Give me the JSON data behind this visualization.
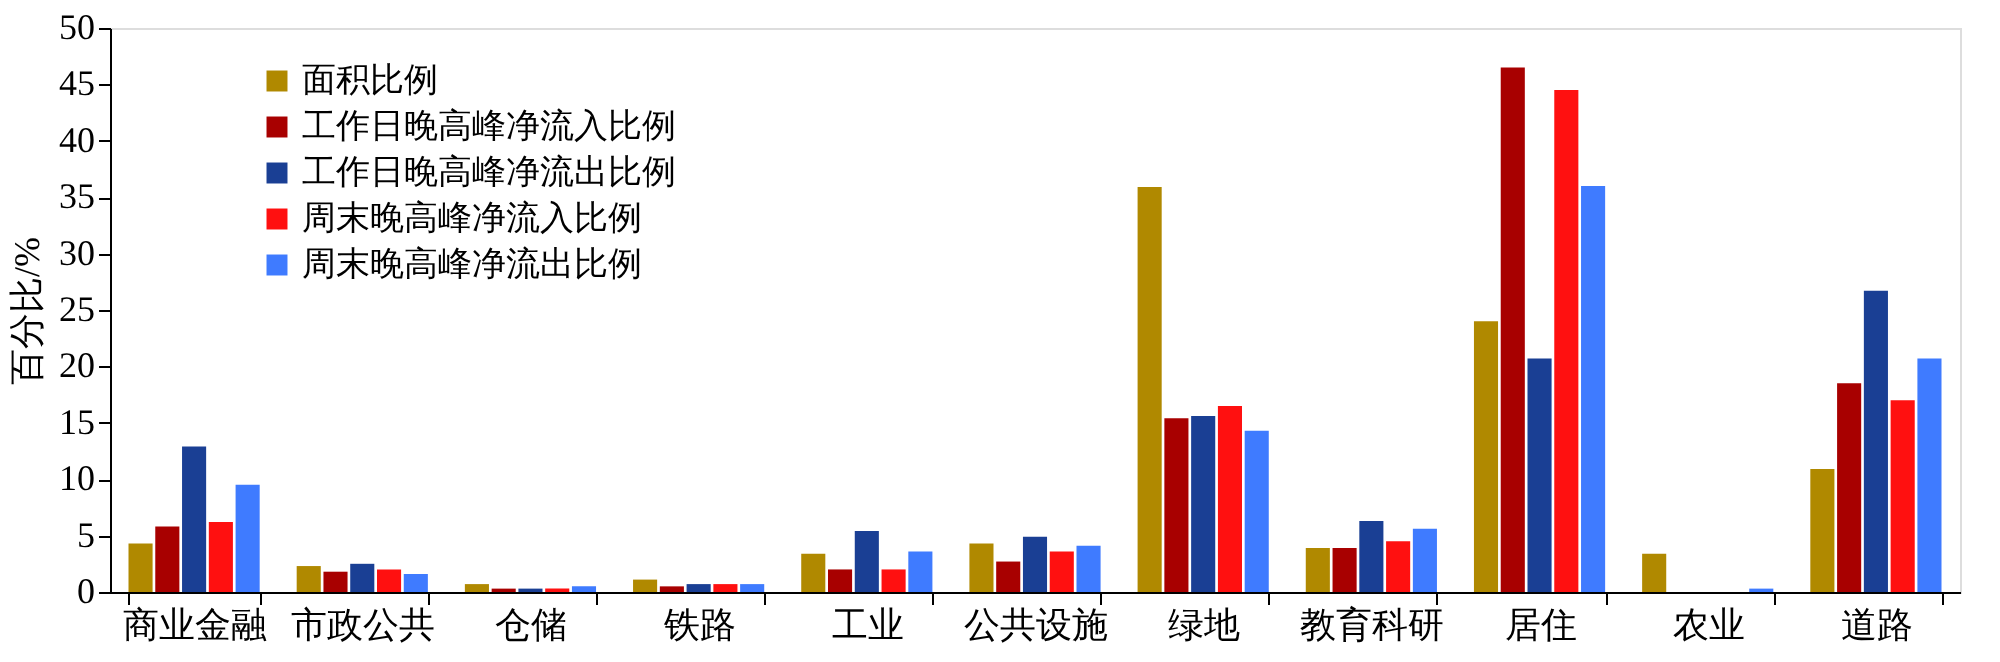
{
  "chart_data": {
    "type": "bar",
    "ylabel": "百分比/%",
    "categories": [
      "商业金融",
      "市政公共",
      "仓储",
      "铁路",
      "工业",
      "公共设施",
      "绿地",
      "教育科研",
      "居住",
      "农业",
      "道路"
    ],
    "series": [
      {
        "name": "面积比例",
        "color": "#b08900",
        "values": [
          4.3,
          2.3,
          0.7,
          1.1,
          3.4,
          4.3,
          35.9,
          3.9,
          24.0,
          3.4,
          10.9
        ]
      },
      {
        "name": "工作日晚高峰净流入比例",
        "color": "#a80000",
        "values": [
          5.8,
          1.8,
          0.3,
          0.5,
          2.0,
          2.7,
          15.4,
          3.9,
          46.5,
          null,
          18.5
        ]
      },
      {
        "name": "工作日晚高峰净流出比例",
        "color": "#1a3f94",
        "values": [
          12.9,
          2.5,
          0.3,
          0.7,
          5.4,
          4.9,
          15.6,
          6.3,
          20.7,
          null,
          26.7
        ]
      },
      {
        "name": "周末晚高峰净流入比例",
        "color": "#ff1010",
        "values": [
          6.2,
          2.0,
          0.3,
          0.7,
          2.0,
          3.6,
          16.5,
          4.5,
          44.5,
          null,
          17.0
        ]
      },
      {
        "name": "周末晚高峰净流出比例",
        "color": "#3f7bff",
        "values": [
          9.5,
          1.6,
          0.5,
          0.7,
          3.6,
          4.1,
          14.3,
          5.6,
          36.0,
          0.3,
          20.7
        ]
      }
    ],
    "ylim": [
      0,
      50
    ],
    "yticks": [
      0,
      5,
      10,
      15,
      20,
      25,
      30,
      35,
      40,
      45,
      50
    ],
    "grid": false,
    "legend": "top left"
  }
}
